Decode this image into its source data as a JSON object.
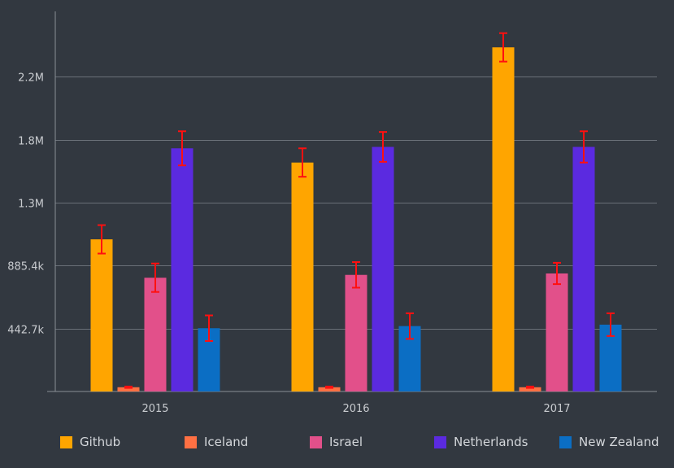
{
  "chart_data": {
    "type": "bar",
    "categories": [
      "2015",
      "2016",
      "2017"
    ],
    "series": [
      {
        "name": "Github",
        "color": "#ffa500",
        "values": [
          1070000,
          1610000,
          2420000
        ],
        "errors": [
          100000,
          100000,
          100000
        ]
      },
      {
        "name": "Iceland",
        "color": "#ff7043",
        "values": [
          30000,
          30000,
          30000
        ],
        "errors": [
          5000,
          5000,
          5000
        ]
      },
      {
        "name": "Israel",
        "color": "#e2508a",
        "values": [
          800000,
          820000,
          830000
        ],
        "errors": [
          100000,
          90000,
          75000
        ]
      },
      {
        "name": "Netherlands",
        "color": "#5b2ae0",
        "values": [
          1710000,
          1720000,
          1720000
        ],
        "errors": [
          120000,
          105000,
          110000
        ]
      },
      {
        "name": "New Zealand",
        "color": "#0b6ec4",
        "values": [
          445000,
          460000,
          470000
        ],
        "errors": [
          90000,
          90000,
          80000
        ]
      }
    ],
    "y_ticks": [
      {
        "value": 442700,
        "label": "442.7k"
      },
      {
        "value": 885400,
        "label": "885.4k"
      },
      {
        "value": 1328100,
        "label": "1.3M"
      },
      {
        "value": 1770800,
        "label": "1.8M"
      },
      {
        "value": 2213500,
        "label": "2.2M"
      }
    ],
    "ylim": [
      0,
      2650000
    ],
    "error_bar_color": "#ff1010",
    "grid": true,
    "legend_position": "bottom"
  },
  "legend": {
    "items": [
      {
        "label": "Github",
        "color": "#ffa500"
      },
      {
        "label": "Iceland",
        "color": "#ff7043"
      },
      {
        "label": "Israel",
        "color": "#e2508a"
      },
      {
        "label": "Netherlands",
        "color": "#5b2ae0"
      },
      {
        "label": "New Zealand",
        "color": "#0b6ec4"
      }
    ]
  }
}
